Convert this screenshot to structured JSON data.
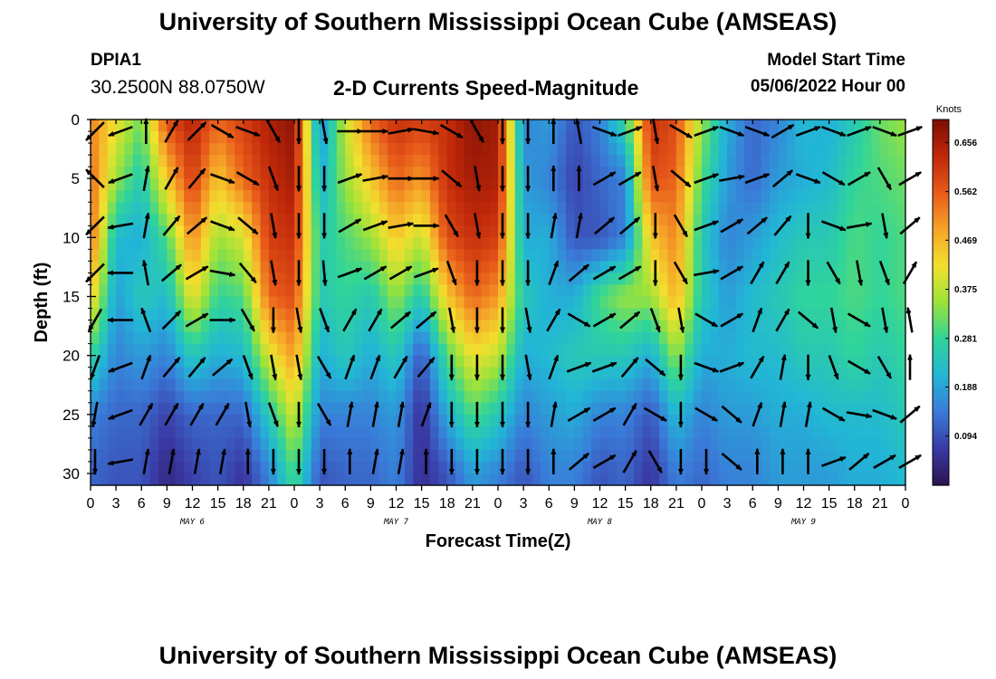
{
  "header": {
    "title": "University of Southern Mississippi Ocean Cube (AMSEAS)",
    "station_id": "DPIA1",
    "coordinates": "30.2500N  88.0750W",
    "product": "2-D Currents Speed-Magnitude",
    "model_start_label": "Model Start Time",
    "model_start_value": "05/06/2022 Hour 00"
  },
  "footer": {
    "title": "University of Southern Mississippi Ocean Cube (AMSEAS)"
  },
  "chart_data": {
    "type": "heatmap",
    "title": "2-D Currents Speed-Magnitude",
    "xlabel": "Forecast Time(Z)",
    "ylabel": "Depth (ft)",
    "x_ticks": [
      "0",
      "3",
      "6",
      "9",
      "12",
      "15",
      "18",
      "21",
      "0",
      "3",
      "6",
      "9",
      "12",
      "15",
      "18",
      "21",
      "0",
      "3",
      "6",
      "9",
      "12",
      "15",
      "18",
      "21",
      "0",
      "3",
      "6",
      "9",
      "12",
      "15",
      "18",
      "21",
      "0"
    ],
    "day_labels": [
      {
        "label": "MAY 6",
        "hour": 12
      },
      {
        "label": "MAY 7",
        "hour": 36
      },
      {
        "label": "MAY 8",
        "hour": 60
      },
      {
        "label": "MAY 9",
        "hour": 84
      }
    ],
    "y_ticks": [
      0,
      5,
      10,
      15,
      20,
      25,
      30
    ],
    "xlim_hours": [
      0,
      96
    ],
    "ylim_ft": [
      0,
      31
    ],
    "colorbar": {
      "label": "Knots",
      "ticks": [
        "0.094",
        "0.188",
        "0.281",
        "0.375",
        "0.469",
        "0.562",
        "0.656"
      ],
      "range": [
        0,
        0.7
      ],
      "colors": [
        "#2c1350",
        "#3a3aa5",
        "#3a7ad8",
        "#22b6d6",
        "#30d49a",
        "#9be23a",
        "#f2e02e",
        "#f5a428",
        "#e85a1a",
        "#c0280a",
        "#7a0e04"
      ]
    },
    "speed_profiles": [
      {
        "hour": 0,
        "speed_by_depth": [
          0.52,
          0.55,
          0.55,
          0.45,
          0.28,
          0.15,
          0.12
        ]
      },
      {
        "hour": 3,
        "speed_by_depth": [
          0.42,
          0.35,
          0.22,
          0.18,
          0.15,
          0.12,
          0.1
        ]
      },
      {
        "hour": 6,
        "speed_by_depth": [
          0.32,
          0.25,
          0.2,
          0.25,
          0.18,
          0.12,
          0.1
        ]
      },
      {
        "hour": 9,
        "speed_by_depth": [
          0.58,
          0.45,
          0.3,
          0.22,
          0.15,
          0.08,
          0.04
        ]
      },
      {
        "hour": 12,
        "speed_by_depth": [
          0.64,
          0.6,
          0.52,
          0.42,
          0.25,
          0.12,
          0.08
        ]
      },
      {
        "hour": 15,
        "speed_by_depth": [
          0.55,
          0.45,
          0.35,
          0.28,
          0.2,
          0.12,
          0.1
        ]
      },
      {
        "hour": 18,
        "speed_by_depth": [
          0.6,
          0.55,
          0.4,
          0.3,
          0.22,
          0.12,
          0.06
        ]
      },
      {
        "hour": 21,
        "speed_by_depth": [
          0.65,
          0.62,
          0.6,
          0.55,
          0.4,
          0.25,
          0.15
        ]
      },
      {
        "hour": 24,
        "speed_by_depth": [
          0.68,
          0.66,
          0.62,
          0.58,
          0.5,
          0.4,
          0.3
        ]
      },
      {
        "hour": 27,
        "speed_by_depth": [
          0.15,
          0.2,
          0.25,
          0.25,
          0.2,
          0.15,
          0.1
        ]
      },
      {
        "hour": 30,
        "speed_by_depth": [
          0.38,
          0.35,
          0.3,
          0.28,
          0.25,
          0.15,
          0.12
        ]
      },
      {
        "hour": 33,
        "speed_by_depth": [
          0.55,
          0.45,
          0.35,
          0.25,
          0.2,
          0.15,
          0.12
        ]
      },
      {
        "hour": 36,
        "speed_by_depth": [
          0.62,
          0.55,
          0.45,
          0.35,
          0.25,
          0.18,
          0.15
        ]
      },
      {
        "hour": 39,
        "speed_by_depth": [
          0.6,
          0.5,
          0.38,
          0.25,
          0.1,
          0.05,
          0.05
        ]
      },
      {
        "hour": 42,
        "speed_by_depth": [
          0.62,
          0.62,
          0.58,
          0.45,
          0.3,
          0.2,
          0.1
        ]
      },
      {
        "hour": 45,
        "speed_by_depth": [
          0.68,
          0.66,
          0.62,
          0.55,
          0.42,
          0.3,
          0.18
        ]
      },
      {
        "hour": 48,
        "speed_by_depth": [
          0.66,
          0.65,
          0.6,
          0.5,
          0.38,
          0.25,
          0.15
        ]
      },
      {
        "hour": 51,
        "speed_by_depth": [
          0.15,
          0.18,
          0.2,
          0.25,
          0.2,
          0.15,
          0.1
        ]
      },
      {
        "hour": 54,
        "speed_by_depth": [
          0.18,
          0.15,
          0.2,
          0.2,
          0.22,
          0.18,
          0.15
        ]
      },
      {
        "hour": 57,
        "speed_by_depth": [
          0.1,
          0.08,
          0.1,
          0.2,
          0.25,
          0.2,
          0.15
        ]
      },
      {
        "hour": 60,
        "speed_by_depth": [
          0.15,
          0.12,
          0.1,
          0.3,
          0.25,
          0.15,
          0.1
        ]
      },
      {
        "hour": 63,
        "speed_by_depth": [
          0.28,
          0.15,
          0.15,
          0.35,
          0.25,
          0.15,
          0.12
        ]
      },
      {
        "hour": 66,
        "speed_by_depth": [
          0.62,
          0.58,
          0.45,
          0.35,
          0.2,
          0.1,
          0.06
        ]
      },
      {
        "hour": 69,
        "speed_by_depth": [
          0.58,
          0.55,
          0.52,
          0.48,
          0.35,
          0.22,
          0.15
        ]
      },
      {
        "hour": 72,
        "speed_by_depth": [
          0.35,
          0.3,
          0.25,
          0.25,
          0.2,
          0.15,
          0.12
        ]
      },
      {
        "hour": 75,
        "speed_by_depth": [
          0.2,
          0.18,
          0.15,
          0.18,
          0.2,
          0.18,
          0.15
        ]
      },
      {
        "hour": 78,
        "speed_by_depth": [
          0.12,
          0.12,
          0.18,
          0.22,
          0.22,
          0.18,
          0.15
        ]
      },
      {
        "hour": 81,
        "speed_by_depth": [
          0.15,
          0.18,
          0.22,
          0.25,
          0.22,
          0.2,
          0.18
        ]
      },
      {
        "hour": 84,
        "speed_by_depth": [
          0.22,
          0.2,
          0.25,
          0.28,
          0.25,
          0.2,
          0.18
        ]
      },
      {
        "hour": 87,
        "speed_by_depth": [
          0.2,
          0.22,
          0.25,
          0.28,
          0.25,
          0.22,
          0.18
        ]
      },
      {
        "hour": 90,
        "speed_by_depth": [
          0.25,
          0.28,
          0.3,
          0.3,
          0.28,
          0.22,
          0.2
        ]
      },
      {
        "hour": 93,
        "speed_by_depth": [
          0.32,
          0.3,
          0.28,
          0.28,
          0.25,
          0.22,
          0.2
        ]
      },
      {
        "hour": 96,
        "speed_by_depth": [
          0.35,
          0.32,
          0.3,
          0.3,
          0.28,
          0.25,
          0.22
        ]
      }
    ],
    "profile_depths_ft": [
      0,
      5,
      10,
      15,
      20,
      25,
      30
    ],
    "vector_depths_ft": [
      1,
      5,
      9,
      13,
      17,
      21,
      25,
      29
    ],
    "vector_hours_step": 3,
    "vectors_note": "direction arrows (degrees, 0=east, 90=north) per time step and depth level",
    "vector_directions_deg": [
      [
        225,
        135,
        225,
        225,
        240,
        250,
        260,
        270
      ],
      [
        200,
        200,
        190,
        180,
        180,
        200,
        200,
        190
      ],
      [
        90,
        80,
        80,
        100,
        110,
        70,
        60,
        80
      ],
      [
        60,
        60,
        50,
        40,
        45,
        50,
        60,
        80
      ],
      [
        45,
        50,
        40,
        30,
        30,
        50,
        60,
        80
      ],
      [
        -30,
        -20,
        -20,
        -10,
        0,
        40,
        60,
        80
      ],
      [
        -20,
        -30,
        -40,
        -50,
        -60,
        -70,
        -80,
        90
      ],
      [
        -60,
        -70,
        -80,
        -80,
        -90,
        -80,
        -70,
        -90
      ],
      [
        -90,
        -90,
        -90,
        -90,
        -80,
        -80,
        -90,
        -90
      ],
      [
        -80,
        -90,
        -90,
        -85,
        -70,
        -60,
        -60,
        -90
      ],
      [
        0,
        20,
        30,
        20,
        60,
        70,
        80,
        90
      ],
      [
        0,
        10,
        20,
        30,
        60,
        70,
        80,
        80
      ],
      [
        10,
        0,
        10,
        30,
        40,
        60,
        80,
        80
      ],
      [
        -10,
        0,
        0,
        20,
        40,
        50,
        70,
        90
      ],
      [
        -30,
        -40,
        -60,
        -70,
        -80,
        -90,
        -90,
        -90
      ],
      [
        -60,
        -80,
        -80,
        -90,
        -90,
        -90,
        -90,
        -90
      ],
      [
        -90,
        -90,
        -90,
        -90,
        -90,
        -90,
        -90,
        -90
      ],
      [
        -90,
        -90,
        -90,
        -90,
        -80,
        -80,
        -90,
        -90
      ],
      [
        90,
        90,
        80,
        70,
        60,
        70,
        80,
        90
      ],
      [
        100,
        90,
        80,
        40,
        -30,
        20,
        30,
        40
      ],
      [
        -20,
        30,
        40,
        30,
        30,
        20,
        30,
        30
      ],
      [
        20,
        30,
        40,
        30,
        40,
        50,
        60,
        60
      ],
      [
        -80,
        -80,
        -90,
        -90,
        -70,
        -40,
        -30,
        -60
      ],
      [
        -30,
        -40,
        -60,
        -60,
        -80,
        -90,
        -90,
        -90
      ],
      [
        20,
        20,
        20,
        10,
        -30,
        -20,
        -30,
        -90
      ],
      [
        -20,
        10,
        30,
        30,
        30,
        20,
        -40,
        -40
      ],
      [
        -20,
        20,
        40,
        60,
        70,
        60,
        70,
        90
      ],
      [
        30,
        40,
        50,
        60,
        60,
        80,
        80,
        90
      ],
      [
        20,
        -20,
        -90,
        -90,
        -40,
        -90,
        80,
        90
      ],
      [
        -20,
        -30,
        -20,
        -60,
        -80,
        -70,
        -30,
        20
      ],
      [
        20,
        30,
        10,
        -80,
        -30,
        -30,
        -10,
        40
      ],
      [
        -20,
        -60,
        -80,
        -70,
        -80,
        -60,
        -20,
        30
      ],
      [
        20,
        30,
        40,
        60,
        100,
        90,
        40,
        30
      ]
    ]
  }
}
